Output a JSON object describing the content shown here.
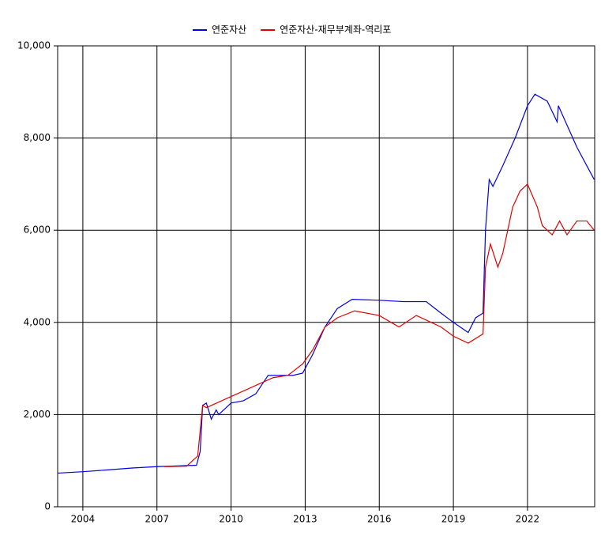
{
  "chart_data": {
    "type": "line",
    "xlim": [
      2002.98,
      2024.72
    ],
    "xticks": [
      2004,
      2007,
      2010,
      2013,
      2016,
      2019,
      2022
    ],
    "ylim": [
      0,
      10000
    ],
    "yticks": [
      0,
      {
        "value": 2000,
        "label": "2,000"
      },
      {
        "value": 4000,
        "label": "4,000"
      },
      {
        "value": 6000,
        "label": "6,000"
      },
      {
        "value": 8000,
        "label": "8,000"
      },
      {
        "value": 10000,
        "label": "10,000"
      }
    ],
    "grid": true,
    "legend": "top",
    "series": [
      {
        "name": "연준자산",
        "color": "#0000e0",
        "x": [
          2003.0,
          2004.0,
          2005.0,
          2006.0,
          2007.0,
          2008.6,
          2008.75,
          2008.85,
          2009.0,
          2009.2,
          2009.4,
          2009.5,
          2010.0,
          2010.5,
          2011.0,
          2011.5,
          2012.0,
          2012.5,
          2012.9,
          2013.3,
          2013.8,
          2014.3,
          2014.9,
          2016.0,
          2017.0,
          2017.9,
          2018.5,
          2019.0,
          2019.6,
          2019.9,
          2020.2,
          2020.3,
          2020.45,
          2020.6,
          2021.0,
          2021.5,
          2022.0,
          2022.3,
          2022.8,
          2023.2,
          2023.25,
          2023.5,
          2024.0,
          2024.5,
          2024.7
        ],
        "values": [
          730,
          760,
          800,
          840,
          870,
          900,
          1200,
          2200,
          2250,
          1900,
          2100,
          2000,
          2250,
          2300,
          2450,
          2850,
          2850,
          2850,
          2900,
          3300,
          3900,
          4300,
          4500,
          4480,
          4450,
          4450,
          4200,
          4000,
          3780,
          4100,
          4200,
          6000,
          7100,
          6950,
          7400,
          8000,
          8700,
          8950,
          8800,
          8350,
          8700,
          8400,
          7800,
          7300,
          7100
        ]
      },
      {
        "name": "연준자산-재무부계좌-역리포",
        "color": "#e00000",
        "x": [
          2007.3,
          2008.2,
          2008.65,
          2008.85,
          2009.0,
          2011.7,
          2012.3,
          2012.9,
          2013.3,
          2013.8,
          2014.3,
          2015.0,
          2016.0,
          2016.8,
          2017.5,
          2018.5,
          2019.0,
          2019.6,
          2020.2,
          2020.3,
          2020.5,
          2020.8,
          2021.0,
          2021.4,
          2021.7,
          2022.0,
          2022.4,
          2022.6,
          2023.0,
          2023.3,
          2023.6,
          2024.0,
          2024.4,
          2024.7
        ],
        "values": [
          870,
          880,
          1100,
          2200,
          2150,
          2800,
          2850,
          3100,
          3400,
          3900,
          4100,
          4250,
          4150,
          3900,
          4150,
          3900,
          3700,
          3550,
          3750,
          5200,
          5700,
          5200,
          5500,
          6500,
          6850,
          7000,
          6500,
          6100,
          5900,
          6200,
          5900,
          6200,
          6200,
          6000
        ]
      }
    ]
  }
}
